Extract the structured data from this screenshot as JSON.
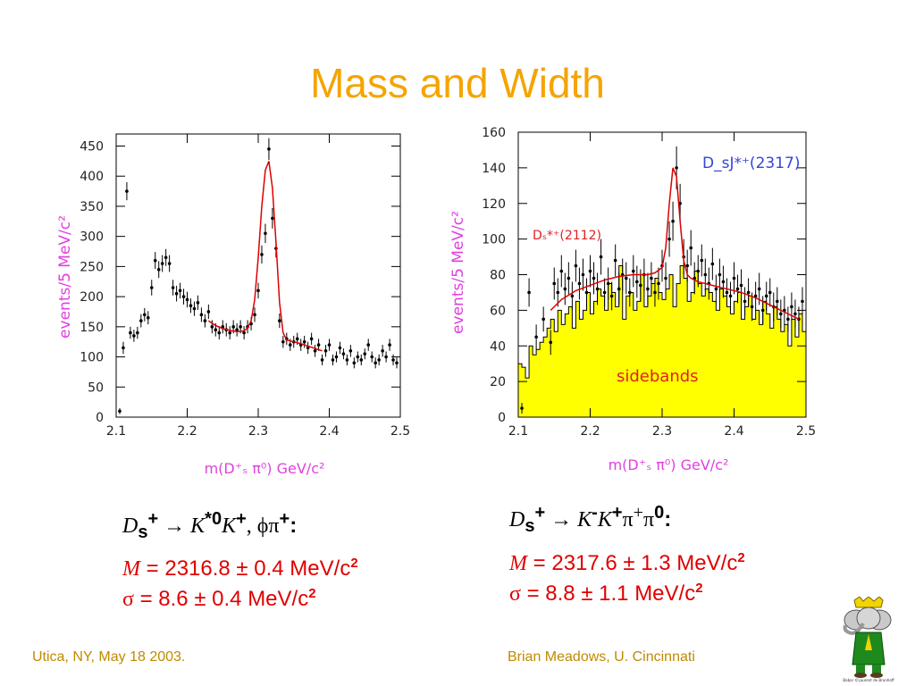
{
  "slide": {
    "title": "Mass and Width",
    "footer_left": "Utica, NY, May 18 2003.",
    "footer_right": "Brian Meadows, U. Cincinnati",
    "logo_text": "Babar ©Laurent de Brunhoff"
  },
  "colors": {
    "title": "#f5a400",
    "footer": "#c08a00",
    "result": "#e00000",
    "axis_label": "#e040e0",
    "fit": "#dd0000",
    "sideband_fill": "#ffff00",
    "annotation_blue": "#3344dd"
  },
  "left": {
    "formula": {
      "d": "D",
      "s": "s",
      "plus1": "+",
      "arrow": " → ",
      "k": "K",
      "kstar": "*0",
      "k2": "K",
      "plus2": "+",
      "rest": ", ϕπ",
      "plus3": "+",
      "colon": ":"
    },
    "mass": {
      "symbol": "M",
      "text": " = 2316.8 ± 0.4 MeV/c",
      "sup": "2"
    },
    "width": {
      "symbol": "σ",
      "text": "  = 8.6 ± 0.4 MeV/c",
      "sup": "2"
    }
  },
  "right": {
    "formula": {
      "d": "D",
      "s": "s",
      "plus1": "+",
      "arrow": " → ",
      "k": "K",
      "minus": "-",
      "k2": "K",
      "plus2": "+",
      "rest": "π",
      "plus3": "+",
      "pi0": "π",
      "zero": "0",
      "colon": ":"
    },
    "mass": {
      "symbol": "M",
      "text": " = 2317.6 ± 1.3 MeV/c",
      "sup": "2"
    },
    "width": {
      "symbol": "σ",
      "text": "  = 8.8 ± 1.1 MeV/c",
      "sup": "2"
    }
  },
  "chart_data": [
    {
      "type": "scatter",
      "xlabel": "m(D⁺ₛ π⁰) GeV/c²",
      "ylabel": "events/5 MeV/c²",
      "xlim": [
        2.1,
        2.5
      ],
      "ylim": [
        0,
        470
      ],
      "xticks": [
        "2.1",
        "2.2",
        "2.3",
        "2.4",
        "2.5"
      ],
      "yticks": [
        "0",
        "50",
        "100",
        "150",
        "200",
        "250",
        "300",
        "350",
        "400",
        "450"
      ],
      "series": [
        {
          "x": [
            2.105,
            2.11,
            2.115,
            2.12,
            2.125,
            2.13,
            2.135,
            2.14,
            2.145,
            2.15,
            2.155,
            2.16,
            2.165,
            2.17,
            2.175,
            2.18,
            2.185,
            2.19,
            2.195,
            2.2,
            2.205,
            2.21,
            2.215,
            2.22,
            2.225,
            2.23,
            2.235,
            2.24,
            2.245,
            2.25,
            2.255,
            2.26,
            2.265,
            2.27,
            2.275,
            2.28,
            2.285,
            2.29,
            2.295,
            2.3,
            2.305,
            2.31,
            2.315,
            2.32,
            2.325,
            2.33,
            2.335,
            2.34,
            2.345,
            2.35,
            2.355,
            2.36,
            2.365,
            2.37,
            2.375,
            2.38,
            2.385,
            2.39,
            2.395,
            2.4,
            2.405,
            2.41,
            2.415,
            2.42,
            2.425,
            2.43,
            2.435,
            2.44,
            2.445,
            2.45,
            2.455,
            2.46,
            2.465,
            2.47,
            2.475,
            2.48,
            2.485,
            2.49,
            2.495
          ],
          "y": [
            10,
            115,
            375,
            140,
            135,
            140,
            160,
            170,
            165,
            215,
            260,
            245,
            255,
            265,
            255,
            215,
            205,
            210,
            200,
            195,
            185,
            180,
            190,
            170,
            160,
            175,
            150,
            145,
            140,
            150,
            145,
            140,
            150,
            145,
            150,
            140,
            150,
            155,
            170,
            210,
            270,
            305,
            445,
            330,
            280,
            160,
            125,
            130,
            120,
            125,
            130,
            120,
            125,
            115,
            130,
            110,
            120,
            95,
            110,
            120,
            95,
            100,
            115,
            105,
            95,
            110,
            90,
            100,
            95,
            105,
            120,
            100,
            90,
            95,
            110,
            100,
            120,
            95,
            90
          ],
          "errors": [
            5,
            10,
            15,
            10,
            10,
            10,
            11,
            11,
            11,
            13,
            14,
            14,
            14,
            14,
            14,
            13,
            13,
            13,
            13,
            13,
            12,
            12,
            12,
            12,
            11,
            12,
            11,
            11,
            11,
            11,
            11,
            11,
            11,
            11,
            11,
            11,
            11,
            11,
            12,
            13,
            15,
            16,
            18,
            17,
            15,
            12,
            10,
            10,
            10,
            10,
            10,
            10,
            10,
            10,
            10,
            10,
            10,
            9,
            10,
            10,
            9,
            9,
            10,
            9,
            9,
            10,
            9,
            9,
            9,
            9,
            10,
            9,
            9,
            9,
            10,
            9,
            10,
            9,
            9
          ]
        }
      ],
      "fit": {
        "x": [
          2.23,
          2.24,
          2.25,
          2.26,
          2.27,
          2.28,
          2.285,
          2.29,
          2.295,
          2.3,
          2.305,
          2.31,
          2.315,
          2.32,
          2.325,
          2.33,
          2.335,
          2.34,
          2.35,
          2.36,
          2.37,
          2.38,
          2.39
        ],
        "y": [
          160,
          152,
          147,
          144,
          142,
          143,
          148,
          160,
          195,
          265,
          350,
          410,
          425,
          380,
          290,
          190,
          140,
          128,
          125,
          122,
          118,
          114,
          110
        ]
      }
    },
    {
      "type": "bar",
      "xlabel": "m(D⁺ₛ π⁰) GeV/c²",
      "ylabel": "events/5 MeV/c²",
      "xlim": [
        2.1,
        2.5
      ],
      "ylim": [
        0,
        160
      ],
      "xticks": [
        "2.1",
        "2.2",
        "2.3",
        "2.4",
        "2.5"
      ],
      "yticks": [
        "0",
        "20",
        "40",
        "60",
        "80",
        "100",
        "120",
        "140",
        "160"
      ],
      "annotations": [
        "sidebands",
        "Dₛ*⁺(2112)",
        "D_sJ*⁺(2317)"
      ],
      "sidebands": {
        "x": [
          2.1,
          2.105,
          2.11,
          2.115,
          2.12,
          2.125,
          2.13,
          2.135,
          2.14,
          2.145,
          2.15,
          2.155,
          2.16,
          2.165,
          2.17,
          2.175,
          2.18,
          2.185,
          2.19,
          2.195,
          2.2,
          2.205,
          2.21,
          2.215,
          2.22,
          2.225,
          2.23,
          2.235,
          2.24,
          2.245,
          2.25,
          2.255,
          2.26,
          2.265,
          2.27,
          2.275,
          2.28,
          2.285,
          2.29,
          2.295,
          2.3,
          2.305,
          2.31,
          2.315,
          2.32,
          2.325,
          2.33,
          2.335,
          2.34,
          2.345,
          2.35,
          2.355,
          2.36,
          2.365,
          2.37,
          2.375,
          2.38,
          2.385,
          2.39,
          2.395,
          2.4,
          2.405,
          2.41,
          2.415,
          2.42,
          2.425,
          2.43,
          2.435,
          2.44,
          2.445,
          2.45,
          2.455,
          2.46,
          2.465,
          2.47,
          2.475,
          2.48,
          2.485,
          2.49,
          2.495
        ],
        "values": [
          30,
          28,
          22,
          40,
          35,
          38,
          42,
          45,
          50,
          55,
          48,
          60,
          52,
          58,
          62,
          50,
          65,
          55,
          60,
          70,
          58,
          65,
          72,
          68,
          60,
          75,
          70,
          62,
          85,
          55,
          68,
          70,
          60,
          65,
          80,
          62,
          68,
          75,
          78,
          70,
          66,
          72,
          80,
          62,
          75,
          85,
          78,
          65,
          70,
          82,
          75,
          68,
          72,
          70,
          65,
          60,
          72,
          68,
          62,
          58,
          65,
          70,
          55,
          62,
          68,
          55,
          60,
          52,
          65,
          58,
          50,
          62,
          55,
          48,
          52,
          40,
          55,
          45,
          58,
          48
        ]
      },
      "series": [
        {
          "x": [
            2.105,
            2.115,
            2.125,
            2.135,
            2.145,
            2.15,
            2.155,
            2.16,
            2.165,
            2.17,
            2.175,
            2.18,
            2.185,
            2.19,
            2.195,
            2.2,
            2.205,
            2.21,
            2.215,
            2.22,
            2.225,
            2.23,
            2.235,
            2.24,
            2.245,
            2.25,
            2.255,
            2.26,
            2.265,
            2.27,
            2.275,
            2.28,
            2.285,
            2.29,
            2.295,
            2.3,
            2.305,
            2.31,
            2.315,
            2.32,
            2.325,
            2.33,
            2.335,
            2.34,
            2.345,
            2.35,
            2.355,
            2.36,
            2.365,
            2.37,
            2.375,
            2.38,
            2.385,
            2.39,
            2.395,
            2.4,
            2.405,
            2.41,
            2.415,
            2.42,
            2.425,
            2.43,
            2.435,
            2.44,
            2.445,
            2.45,
            2.455,
            2.46,
            2.465,
            2.47,
            2.475,
            2.48,
            2.485,
            2.49,
            2.495
          ],
          "y": [
            5,
            70,
            45,
            55,
            42,
            75,
            70,
            82,
            72,
            78,
            68,
            85,
            75,
            80,
            70,
            82,
            78,
            72,
            90,
            70,
            75,
            68,
            88,
            72,
            80,
            78,
            70,
            82,
            76,
            74,
            80,
            72,
            78,
            70,
            75,
            85,
            78,
            100,
            110,
            140,
            120,
            90,
            85,
            95,
            78,
            82,
            88,
            80,
            75,
            86,
            72,
            80,
            76,
            70,
            68,
            78,
            72,
            74,
            65,
            70,
            62,
            68,
            72,
            60,
            68,
            70,
            62,
            65,
            58,
            60,
            55,
            62,
            58,
            55,
            65
          ],
          "errors": [
            3,
            8,
            7,
            7,
            7,
            9,
            8,
            9,
            9,
            9,
            8,
            9,
            9,
            9,
            8,
            9,
            9,
            9,
            10,
            8,
            9,
            8,
            9,
            9,
            9,
            9,
            8,
            9,
            9,
            9,
            9,
            9,
            9,
            8,
            9,
            9,
            9,
            10,
            11,
            12,
            11,
            10,
            9,
            10,
            9,
            9,
            9,
            9,
            9,
            9,
            8,
            9,
            9,
            8,
            8,
            9,
            8,
            9,
            8,
            8,
            8,
            8,
            9,
            8,
            8,
            8,
            8,
            8,
            8,
            8,
            7,
            8,
            8,
            7,
            8
          ]
        }
      ],
      "fit": {
        "x": [
          2.145,
          2.16,
          2.18,
          2.2,
          2.22,
          2.24,
          2.26,
          2.28,
          2.29,
          2.3,
          2.305,
          2.31,
          2.315,
          2.32,
          2.325,
          2.33,
          2.335,
          2.34,
          2.35,
          2.37,
          2.39,
          2.41,
          2.43,
          2.45,
          2.47,
          2.49
        ],
        "y": [
          60,
          66,
          71,
          74,
          77,
          79,
          80,
          80,
          81,
          84,
          95,
          120,
          140,
          135,
          110,
          88,
          80,
          78,
          76,
          74,
          72,
          70,
          67,
          63,
          59,
          55
        ]
      }
    }
  ]
}
